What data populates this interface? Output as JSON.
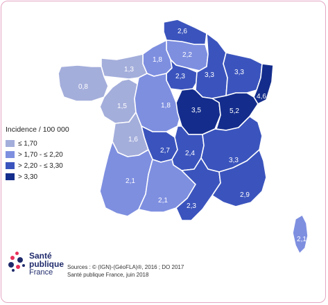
{
  "legend": {
    "title": "Incidence / 100 000",
    "items": [
      {
        "label": "≤ 1,70",
        "color": "#a4aedb"
      },
      {
        "label": "> 1,70 - ≤ 2,20",
        "color": "#7e8fe0"
      },
      {
        "label": "> 2,20 - ≤ 3,30",
        "color": "#3b54bd"
      },
      {
        "label": "> 3,30",
        "color": "#142d8c"
      }
    ]
  },
  "regions": [
    {
      "name": "Nord-Pas-de-Calais",
      "value": "2,6",
      "color": "#3b54bd"
    },
    {
      "name": "Picardie",
      "value": "2,2",
      "color": "#7e8fe0"
    },
    {
      "name": "Haute-Normandie",
      "value": "1,8",
      "color": "#7e8fe0"
    },
    {
      "name": "Basse-Normandie",
      "value": "1,3",
      "color": "#a4aedb"
    },
    {
      "name": "Bretagne",
      "value": "0,8",
      "color": "#a4aedb"
    },
    {
      "name": "Île-de-France",
      "value": "2,3",
      "color": "#3b54bd"
    },
    {
      "name": "Champagne-Ardenne",
      "value": "3,3",
      "color": "#3b54bd"
    },
    {
      "name": "Lorraine",
      "value": "3,3",
      "color": "#3b54bd"
    },
    {
      "name": "Alsace",
      "value": "4,6",
      "color": "#142d8c"
    },
    {
      "name": "Pays de la Loire",
      "value": "1,5",
      "color": "#a4aedb"
    },
    {
      "name": "Centre",
      "value": "1,8",
      "color": "#7e8fe0"
    },
    {
      "name": "Bourgogne",
      "value": "3,5",
      "color": "#142d8c"
    },
    {
      "name": "Franche-Comté",
      "value": "5,2",
      "color": "#142d8c"
    },
    {
      "name": "Poitou-Charentes",
      "value": "1,6",
      "color": "#a4aedb"
    },
    {
      "name": "Limousin",
      "value": "2,7",
      "color": "#3b54bd"
    },
    {
      "name": "Auvergne",
      "value": "2,4",
      "color": "#3b54bd"
    },
    {
      "name": "Rhône-Alpes",
      "value": "3,3",
      "color": "#3b54bd"
    },
    {
      "name": "Aquitaine",
      "value": "2,1",
      "color": "#7e8fe0"
    },
    {
      "name": "Midi-Pyrénées",
      "value": "2,1",
      "color": "#7e8fe0"
    },
    {
      "name": "Languedoc-Roussillon",
      "value": "2,3",
      "color": "#3b54bd"
    },
    {
      "name": "Provence-Alpes-Côte d'Azur",
      "value": "2,9",
      "color": "#3b54bd"
    },
    {
      "name": "Corse",
      "value": "2,1",
      "color": "#7e8fe0"
    }
  ],
  "logo": {
    "line1": "Santé",
    "line2": "publique",
    "line3": "France"
  },
  "sources": {
    "line1": "Sources : © (IGN)-(GéoFLA)®, 2016 ; DO 2017",
    "line2": "Santé publique France, juin 2018"
  }
}
